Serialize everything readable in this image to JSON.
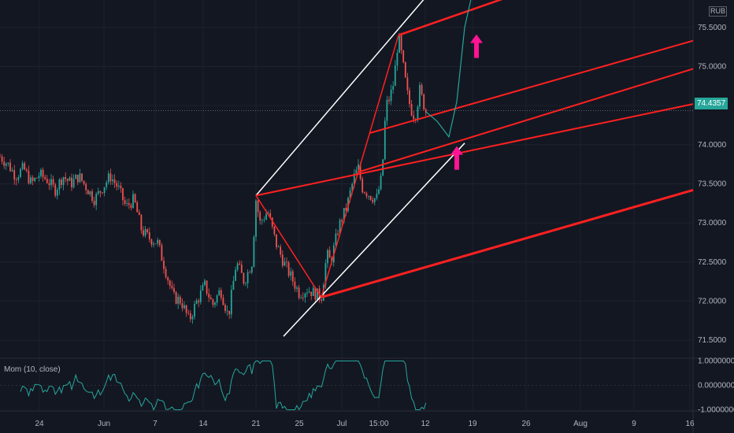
{
  "currency": "RUB",
  "last_price_label": "74.4357",
  "indicator": {
    "label": "Mom (10, close)"
  },
  "colors": {
    "background": "#131722",
    "up": "#26a69a",
    "down": "#ef5350",
    "grid": "#1e222d",
    "channel": "#ff2020",
    "channel_outer": "#ffffff",
    "arrow": "#ff1493",
    "projection": "#26a69a",
    "momentum": "#26a69a"
  },
  "chart_data": [
    {
      "type": "candlestick",
      "title": "",
      "ylabel": "",
      "ylim": [
        71.27,
        75.85
      ],
      "y_ticks": [
        "75.5000",
        "75.0000",
        "74.5000",
        "74.0000",
        "73.5000",
        "73.0000",
        "72.5000",
        "72.0000",
        "71.5000"
      ],
      "x_ticks": [
        "24",
        "Jun",
        "7",
        "14",
        "21",
        "25",
        "Jul",
        "15:00",
        "12",
        "19",
        "26",
        "Aug",
        "9",
        "16"
      ],
      "last_price": 74.4357,
      "path": [
        [
          0,
          73.85
        ],
        [
          10,
          73.75
        ],
        [
          20,
          73.6
        ],
        [
          30,
          73.7
        ],
        [
          40,
          73.5
        ],
        [
          50,
          73.62
        ],
        [
          60,
          73.55
        ],
        [
          70,
          73.42
        ],
        [
          80,
          73.6
        ],
        [
          90,
          73.5
        ],
        [
          100,
          73.6
        ],
        [
          110,
          73.45
        ],
        [
          120,
          73.3
        ],
        [
          130,
          73.45
        ],
        [
          140,
          73.6
        ],
        [
          150,
          73.45
        ],
        [
          160,
          73.2
        ],
        [
          170,
          73.3
        ],
        [
          180,
          72.9
        ],
        [
          190,
          72.8
        ],
        [
          200,
          72.75
        ],
        [
          210,
          72.4
        ],
        [
          220,
          72.05
        ],
        [
          230,
          72.0
        ],
        [
          240,
          71.75
        ],
        [
          250,
          72.0
        ],
        [
          260,
          72.2
        ],
        [
          270,
          71.95
        ],
        [
          280,
          72.15
        ],
        [
          290,
          71.8
        ],
        [
          300,
          72.5
        ],
        [
          310,
          72.25
        ],
        [
          320,
          72.5
        ],
        [
          325,
          73.3
        ],
        [
          330,
          73.0
        ],
        [
          340,
          73.15
        ],
        [
          350,
          72.75
        ],
        [
          360,
          72.5
        ],
        [
          370,
          72.3
        ],
        [
          380,
          72.1
        ],
        [
          390,
          72.15
        ],
        [
          400,
          72.1
        ],
        [
          408,
          72.05
        ],
        [
          415,
          72.6
        ],
        [
          420,
          72.5
        ],
        [
          430,
          72.95
        ],
        [
          440,
          73.2
        ],
        [
          445,
          73.4
        ],
        [
          450,
          73.6
        ],
        [
          455,
          73.7
        ],
        [
          460,
          73.45
        ],
        [
          470,
          73.35
        ],
        [
          478,
          73.3
        ],
        [
          485,
          73.6
        ],
        [
          490,
          74.5
        ],
        [
          495,
          74.6
        ],
        [
          500,
          74.8
        ],
        [
          506,
          75.4
        ],
        [
          512,
          75.0
        ],
        [
          518,
          74.6
        ],
        [
          522,
          74.45
        ],
        [
          527,
          74.35
        ],
        [
          533,
          74.7
        ],
        [
          537,
          74.55
        ],
        [
          541,
          74.42
        ]
      ],
      "projection": [
        [
          541,
          74.42
        ],
        [
          555,
          74.3
        ],
        [
          570,
          74.1
        ],
        [
          580,
          74.55
        ],
        [
          590,
          75.5
        ],
        [
          600,
          75.95
        ]
      ],
      "channel_lines": {
        "median_line": [
          [
            325,
            73.35
          ],
          [
            880,
            74.52
          ]
        ],
        "upper_line": [
          [
            506,
            75.4
          ],
          [
            640,
            75.87
          ]
        ],
        "second_line": [
          [
            470,
            74.15
          ],
          [
            880,
            75.33
          ]
        ],
        "third_line": [
          [
            455,
            73.65
          ],
          [
            880,
            74.97
          ]
        ],
        "lower_line": [
          [
            408,
            72.05
          ],
          [
            880,
            73.42
          ]
        ],
        "outer_upper": [
          [
            325,
            73.35
          ],
          [
            540,
            75.88
          ]
        ],
        "outer_lower": [
          [
            360,
            71.55
          ],
          [
            590,
            74.02
          ]
        ],
        "swing_up": [
          [
            408,
            72.05
          ],
          [
            506,
            75.4
          ]
        ],
        "swing_down": [
          [
            325,
            73.35
          ],
          [
            408,
            72.05
          ]
        ]
      },
      "annotations": [
        {
          "type": "arrow-up",
          "x": 580,
          "y": 73.82
        },
        {
          "type": "arrow-up",
          "x": 605,
          "y": 75.25
        }
      ]
    },
    {
      "type": "line",
      "title": "",
      "series": [
        {
          "name": "Mom (10, close)"
        }
      ],
      "ylim": [
        -1.05,
        1.05
      ],
      "y_ticks": [
        "1.00000000",
        "0.00000000",
        "-1.00000000"
      ]
    }
  ]
}
